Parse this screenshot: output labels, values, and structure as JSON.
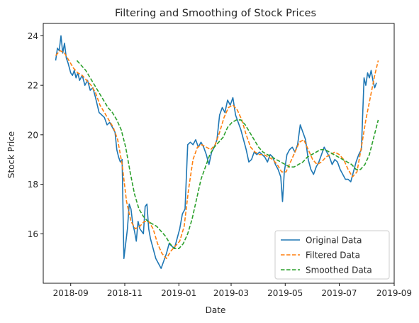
{
  "chart_data": {
    "type": "line",
    "title": "Filtering and Smoothing of Stock Prices",
    "xlabel": "Date",
    "ylabel": "Stock Price",
    "xlim": [
      "2018-08-01",
      "2019-09-01"
    ],
    "ylim": [
      14.0,
      24.5
    ],
    "x_ticks": [
      "2018-09",
      "2018-11",
      "2019-01",
      "2019-03",
      "2019-05",
      "2019-07",
      "2019-09"
    ],
    "y_ticks": [
      16,
      18,
      20,
      22,
      24
    ],
    "grid": false,
    "legend_position": "lower-right",
    "series": [
      {
        "name": "Original Data",
        "color": "#1f77b4",
        "style": "solid",
        "points": [
          [
            "2018-08-15",
            23.0
          ],
          [
            "2018-08-17",
            23.5
          ],
          [
            "2018-08-19",
            23.4
          ],
          [
            "2018-08-21",
            24.0
          ],
          [
            "2018-08-23",
            23.3
          ],
          [
            "2018-08-25",
            23.7
          ],
          [
            "2018-08-27",
            23.1
          ],
          [
            "2018-08-29",
            22.9
          ],
          [
            "2018-09-01",
            22.5
          ],
          [
            "2018-09-03",
            22.4
          ],
          [
            "2018-09-05",
            22.6
          ],
          [
            "2018-09-07",
            22.3
          ],
          [
            "2018-09-09",
            22.5
          ],
          [
            "2018-09-11",
            22.2
          ],
          [
            "2018-09-14",
            22.4
          ],
          [
            "2018-09-17",
            22.0
          ],
          [
            "2018-09-20",
            22.2
          ],
          [
            "2018-09-23",
            21.8
          ],
          [
            "2018-09-26",
            21.9
          ],
          [
            "2018-09-29",
            21.5
          ],
          [
            "2018-10-01",
            21.2
          ],
          [
            "2018-10-03",
            20.9
          ],
          [
            "2018-10-06",
            20.8
          ],
          [
            "2018-10-09",
            20.7
          ],
          [
            "2018-10-12",
            20.4
          ],
          [
            "2018-10-15",
            20.5
          ],
          [
            "2018-10-18",
            20.3
          ],
          [
            "2018-10-21",
            20.1
          ],
          [
            "2018-10-23",
            19.4
          ],
          [
            "2018-10-25",
            19.1
          ],
          [
            "2018-10-27",
            18.9
          ],
          [
            "2018-10-29",
            19.0
          ],
          [
            "2018-10-31",
            15.0
          ],
          [
            "2018-11-02",
            15.6
          ],
          [
            "2018-11-04",
            16.2
          ],
          [
            "2018-11-06",
            17.2
          ],
          [
            "2018-11-08",
            17.0
          ],
          [
            "2018-11-10",
            16.4
          ],
          [
            "2018-11-12",
            16.1
          ],
          [
            "2018-11-14",
            15.7
          ],
          [
            "2018-11-16",
            16.5
          ],
          [
            "2018-11-18",
            16.2
          ],
          [
            "2018-11-20",
            16.1
          ],
          [
            "2018-11-22",
            16.0
          ],
          [
            "2018-11-24",
            17.1
          ],
          [
            "2018-11-26",
            17.2
          ],
          [
            "2018-11-28",
            16.2
          ],
          [
            "2018-11-30",
            15.8
          ],
          [
            "2018-12-03",
            15.4
          ],
          [
            "2018-12-06",
            15.0
          ],
          [
            "2018-12-09",
            14.8
          ],
          [
            "2018-12-12",
            14.6
          ],
          [
            "2018-12-15",
            14.9
          ],
          [
            "2018-12-18",
            15.2
          ],
          [
            "2018-12-21",
            15.6
          ],
          [
            "2018-12-24",
            15.5
          ],
          [
            "2018-12-27",
            15.4
          ],
          [
            "2018-12-30",
            15.8
          ],
          [
            "2019-01-02",
            16.2
          ],
          [
            "2019-01-05",
            16.8
          ],
          [
            "2019-01-08",
            17.0
          ],
          [
            "2019-01-11",
            19.6
          ],
          [
            "2019-01-14",
            19.7
          ],
          [
            "2019-01-17",
            19.6
          ],
          [
            "2019-01-20",
            19.8
          ],
          [
            "2019-01-23",
            19.5
          ],
          [
            "2019-01-26",
            19.7
          ],
          [
            "2019-01-29",
            19.5
          ],
          [
            "2019-02-01",
            19.2
          ],
          [
            "2019-02-04",
            18.8
          ],
          [
            "2019-02-07",
            19.3
          ],
          [
            "2019-02-10",
            19.5
          ],
          [
            "2019-02-13",
            19.8
          ],
          [
            "2019-02-16",
            20.8
          ],
          [
            "2019-02-19",
            21.1
          ],
          [
            "2019-02-22",
            20.9
          ],
          [
            "2019-02-25",
            21.4
          ],
          [
            "2019-02-28",
            21.2
          ],
          [
            "2019-03-03",
            21.5
          ],
          [
            "2019-03-06",
            20.8
          ],
          [
            "2019-03-09",
            20.5
          ],
          [
            "2019-03-12",
            20.2
          ],
          [
            "2019-03-15",
            19.8
          ],
          [
            "2019-03-18",
            19.4
          ],
          [
            "2019-03-21",
            18.9
          ],
          [
            "2019-03-24",
            19.0
          ],
          [
            "2019-03-27",
            19.3
          ],
          [
            "2019-03-30",
            19.2
          ],
          [
            "2019-04-02",
            19.3
          ],
          [
            "2019-04-05",
            19.2
          ],
          [
            "2019-04-08",
            19.1
          ],
          [
            "2019-04-11",
            18.9
          ],
          [
            "2019-04-14",
            19.2
          ],
          [
            "2019-04-17",
            19.1
          ],
          [
            "2019-04-20",
            18.8
          ],
          [
            "2019-04-23",
            18.6
          ],
          [
            "2019-04-26",
            18.3
          ],
          [
            "2019-04-28",
            17.3
          ],
          [
            "2019-04-30",
            18.5
          ],
          [
            "2019-05-03",
            19.2
          ],
          [
            "2019-05-06",
            19.4
          ],
          [
            "2019-05-09",
            19.5
          ],
          [
            "2019-05-12",
            19.3
          ],
          [
            "2019-05-15",
            19.6
          ],
          [
            "2019-05-18",
            20.4
          ],
          [
            "2019-05-21",
            20.1
          ],
          [
            "2019-05-24",
            19.8
          ],
          [
            "2019-05-27",
            19.0
          ],
          [
            "2019-05-30",
            18.6
          ],
          [
            "2019-06-02",
            18.4
          ],
          [
            "2019-06-05",
            18.7
          ],
          [
            "2019-06-08",
            18.9
          ],
          [
            "2019-06-11",
            19.2
          ],
          [
            "2019-06-14",
            19.5
          ],
          [
            "2019-06-17",
            19.3
          ],
          [
            "2019-06-20",
            19.1
          ],
          [
            "2019-06-23",
            18.8
          ],
          [
            "2019-06-26",
            19.0
          ],
          [
            "2019-06-29",
            18.9
          ],
          [
            "2019-07-02",
            18.6
          ],
          [
            "2019-07-05",
            18.4
          ],
          [
            "2019-07-08",
            18.2
          ],
          [
            "2019-07-11",
            18.2
          ],
          [
            "2019-07-14",
            18.1
          ],
          [
            "2019-07-17",
            18.5
          ],
          [
            "2019-07-20",
            18.9
          ],
          [
            "2019-07-23",
            19.2
          ],
          [
            "2019-07-26",
            19.4
          ],
          [
            "2019-07-29",
            22.3
          ],
          [
            "2019-07-31",
            22.0
          ],
          [
            "2019-08-02",
            22.5
          ],
          [
            "2019-08-04",
            22.3
          ],
          [
            "2019-08-06",
            22.6
          ],
          [
            "2019-08-08",
            22.2
          ],
          [
            "2019-08-10",
            21.9
          ],
          [
            "2019-08-12",
            22.1
          ]
        ]
      },
      {
        "name": "Filtered Data",
        "color": "#ff7f0e",
        "style": "dashed",
        "points": [
          [
            "2018-08-15",
            23.2
          ],
          [
            "2018-08-20",
            23.4
          ],
          [
            "2018-08-25",
            23.3
          ],
          [
            "2018-08-30",
            23.0
          ],
          [
            "2018-09-04",
            22.7
          ],
          [
            "2018-09-09",
            22.5
          ],
          [
            "2018-09-14",
            22.4
          ],
          [
            "2018-09-19",
            22.2
          ],
          [
            "2018-09-24",
            22.0
          ],
          [
            "2018-09-29",
            21.7
          ],
          [
            "2018-10-04",
            21.2
          ],
          [
            "2018-10-09",
            20.9
          ],
          [
            "2018-10-14",
            20.6
          ],
          [
            "2018-10-19",
            20.3
          ],
          [
            "2018-10-24",
            19.8
          ],
          [
            "2018-10-29",
            18.8
          ],
          [
            "2018-11-03",
            17.3
          ],
          [
            "2018-11-08",
            16.5
          ],
          [
            "2018-11-13",
            16.2
          ],
          [
            "2018-11-18",
            16.3
          ],
          [
            "2018-11-23",
            16.5
          ],
          [
            "2018-11-28",
            16.5
          ],
          [
            "2018-12-03",
            16.2
          ],
          [
            "2018-12-08",
            15.6
          ],
          [
            "2018-12-13",
            15.2
          ],
          [
            "2018-12-18",
            15.0
          ],
          [
            "2018-12-23",
            15.3
          ],
          [
            "2018-12-28",
            15.5
          ],
          [
            "2019-01-02",
            15.7
          ],
          [
            "2019-01-07",
            16.3
          ],
          [
            "2019-01-12",
            17.8
          ],
          [
            "2019-01-17",
            19.0
          ],
          [
            "2019-01-22",
            19.5
          ],
          [
            "2019-01-27",
            19.6
          ],
          [
            "2019-02-01",
            19.5
          ],
          [
            "2019-02-06",
            19.4
          ],
          [
            "2019-02-11",
            19.6
          ],
          [
            "2019-02-16",
            20.1
          ],
          [
            "2019-02-21",
            20.7
          ],
          [
            "2019-02-26",
            21.1
          ],
          [
            "2019-03-03",
            21.2
          ],
          [
            "2019-03-08",
            21.0
          ],
          [
            "2019-03-13",
            20.6
          ],
          [
            "2019-03-18",
            20.0
          ],
          [
            "2019-03-23",
            19.5
          ],
          [
            "2019-03-28",
            19.3
          ],
          [
            "2019-04-02",
            19.2
          ],
          [
            "2019-04-07",
            19.2
          ],
          [
            "2019-04-12",
            19.1
          ],
          [
            "2019-04-17",
            19.0
          ],
          [
            "2019-04-22",
            18.8
          ],
          [
            "2019-04-27",
            18.5
          ],
          [
            "2019-05-02",
            18.5
          ],
          [
            "2019-05-07",
            18.9
          ],
          [
            "2019-05-12",
            19.3
          ],
          [
            "2019-05-17",
            19.7
          ],
          [
            "2019-05-22",
            19.8
          ],
          [
            "2019-05-27",
            19.4
          ],
          [
            "2019-06-01",
            19.0
          ],
          [
            "2019-06-06",
            18.8
          ],
          [
            "2019-06-11",
            18.9
          ],
          [
            "2019-06-16",
            19.1
          ],
          [
            "2019-06-21",
            19.2
          ],
          [
            "2019-06-26",
            19.3
          ],
          [
            "2019-07-01",
            19.2
          ],
          [
            "2019-07-06",
            19.0
          ],
          [
            "2019-07-11",
            18.6
          ],
          [
            "2019-07-16",
            18.3
          ],
          [
            "2019-07-21",
            18.5
          ],
          [
            "2019-07-26",
            19.5
          ],
          [
            "2019-07-31",
            20.6
          ],
          [
            "2019-08-05",
            21.5
          ],
          [
            "2019-08-10",
            22.4
          ],
          [
            "2019-08-14",
            23.0
          ]
        ]
      },
      {
        "name": "Smoothed Data",
        "color": "#2ca02c",
        "style": "dashed",
        "points": [
          [
            "2018-09-08",
            23.0
          ],
          [
            "2018-09-13",
            22.8
          ],
          [
            "2018-09-18",
            22.6
          ],
          [
            "2018-09-23",
            22.3
          ],
          [
            "2018-09-28",
            22.0
          ],
          [
            "2018-10-03",
            21.7
          ],
          [
            "2018-10-08",
            21.4
          ],
          [
            "2018-10-13",
            21.1
          ],
          [
            "2018-10-18",
            20.9
          ],
          [
            "2018-10-23",
            20.6
          ],
          [
            "2018-10-28",
            20.2
          ],
          [
            "2018-11-02",
            19.5
          ],
          [
            "2018-11-07",
            18.5
          ],
          [
            "2018-11-12",
            17.6
          ],
          [
            "2018-11-17",
            17.0
          ],
          [
            "2018-11-22",
            16.7
          ],
          [
            "2018-11-27",
            16.5
          ],
          [
            "2018-12-02",
            16.4
          ],
          [
            "2018-12-07",
            16.3
          ],
          [
            "2018-12-12",
            16.1
          ],
          [
            "2018-12-17",
            15.9
          ],
          [
            "2018-12-22",
            15.6
          ],
          [
            "2018-12-27",
            15.4
          ],
          [
            "2019-01-01",
            15.4
          ],
          [
            "2019-01-06",
            15.6
          ],
          [
            "2019-01-11",
            16.0
          ],
          [
            "2019-01-16",
            16.6
          ],
          [
            "2019-01-21",
            17.4
          ],
          [
            "2019-01-26",
            18.2
          ],
          [
            "2019-01-31",
            18.7
          ],
          [
            "2019-02-05",
            19.2
          ],
          [
            "2019-02-10",
            19.5
          ],
          [
            "2019-02-15",
            19.7
          ],
          [
            "2019-02-20",
            19.9
          ],
          [
            "2019-02-25",
            20.3
          ],
          [
            "2019-03-02",
            20.5
          ],
          [
            "2019-03-07",
            20.6
          ],
          [
            "2019-03-12",
            20.6
          ],
          [
            "2019-03-17",
            20.4
          ],
          [
            "2019-03-22",
            20.1
          ],
          [
            "2019-03-27",
            19.8
          ],
          [
            "2019-04-01",
            19.5
          ],
          [
            "2019-04-06",
            19.3
          ],
          [
            "2019-04-11",
            19.2
          ],
          [
            "2019-04-16",
            19.1
          ],
          [
            "2019-04-21",
            19.0
          ],
          [
            "2019-04-26",
            18.9
          ],
          [
            "2019-05-01",
            18.8
          ],
          [
            "2019-05-06",
            18.7
          ],
          [
            "2019-05-11",
            18.7
          ],
          [
            "2019-05-16",
            18.8
          ],
          [
            "2019-05-21",
            18.9
          ],
          [
            "2019-05-26",
            19.1
          ],
          [
            "2019-05-31",
            19.2
          ],
          [
            "2019-06-05",
            19.3
          ],
          [
            "2019-06-10",
            19.4
          ],
          [
            "2019-06-15",
            19.4
          ],
          [
            "2019-06-20",
            19.3
          ],
          [
            "2019-06-25",
            19.2
          ],
          [
            "2019-06-30",
            19.1
          ],
          [
            "2019-07-05",
            19.0
          ],
          [
            "2019-07-10",
            18.9
          ],
          [
            "2019-07-15",
            18.8
          ],
          [
            "2019-07-20",
            18.6
          ],
          [
            "2019-07-25",
            18.6
          ],
          [
            "2019-07-30",
            18.8
          ],
          [
            "2019-08-04",
            19.2
          ],
          [
            "2019-08-09",
            19.9
          ],
          [
            "2019-08-14",
            20.6
          ]
        ]
      }
    ]
  }
}
